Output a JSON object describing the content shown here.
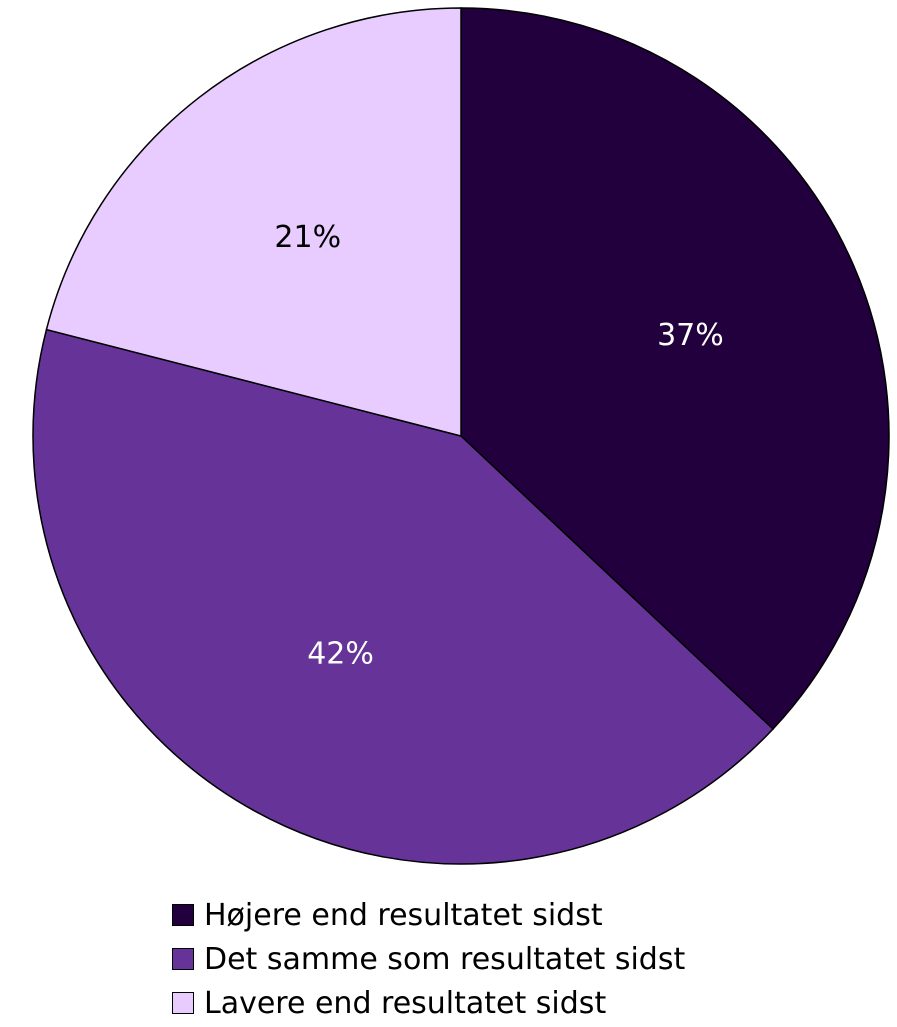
{
  "chart_data": {
    "type": "pie",
    "title": "",
    "start_angle_deg": 0,
    "direction": "clockwise",
    "legend_position": "bottom",
    "slices": [
      {
        "label": "Højere end resultatet sidst",
        "value": 37,
        "display": "37%",
        "color": "#22003d",
        "label_color": "#ffffff"
      },
      {
        "label": "Det samme som resultatet sidst",
        "value": 42,
        "display": "42%",
        "color": "#663399",
        "label_color": "#ffffff"
      },
      {
        "label": "Lavere end resultatet sidst",
        "value": 21,
        "display": "21%",
        "color": "#e9ccff",
        "label_color": "#000000"
      }
    ]
  }
}
